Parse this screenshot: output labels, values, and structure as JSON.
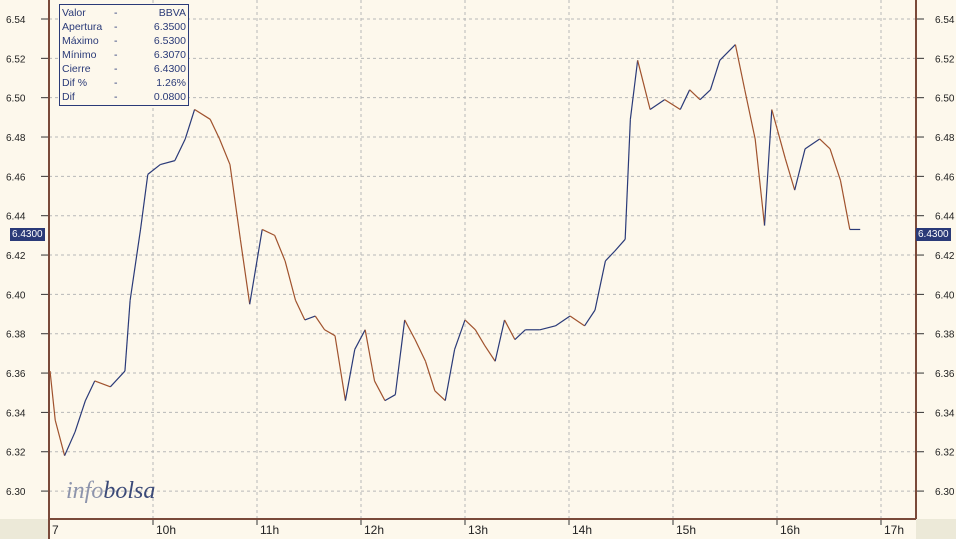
{
  "info_box": {
    "rows": [
      {
        "label": "Valor",
        "value": "BBVA"
      },
      {
        "label": "Apertura",
        "value": "6.3500"
      },
      {
        "label": "Máximo",
        "value": "6.5300"
      },
      {
        "label": "Mínimo",
        "value": "6.3070"
      },
      {
        "label": "Cierre",
        "value": "6.4300"
      },
      {
        "label": "Dif %",
        "value": "1.26%"
      },
      {
        "label": "Dif",
        "value": "0.0800"
      }
    ],
    "sep": "-"
  },
  "logo": {
    "part1": "info",
    "part2": "bolsa"
  },
  "last_value_tag": "6.4300",
  "colors": {
    "up": "#2a3a78",
    "down": "#a0522d",
    "axis": "#7a4a3a",
    "grid": "#b8b8b8"
  },
  "chart_data": {
    "type": "line",
    "yticks": [
      "6.30",
      "6.32",
      "6.34",
      "6.36",
      "6.38",
      "6.40",
      "6.42",
      "6.44",
      "6.46",
      "6.48",
      "6.50",
      "6.52",
      "6.54"
    ],
    "ylim": [
      6.29,
      6.55
    ],
    "xticks": [
      {
        "h": 9,
        "label": "7"
      },
      {
        "h": 10,
        "label": "10h"
      },
      {
        "h": 11,
        "label": "11h"
      },
      {
        "h": 12,
        "label": "12h"
      },
      {
        "h": 13,
        "label": "13h"
      },
      {
        "h": 14,
        "label": "14h"
      },
      {
        "h": 15,
        "label": "15h"
      },
      {
        "h": 16,
        "label": "16h"
      },
      {
        "h": 17,
        "label": "17h"
      }
    ],
    "xlim": [
      9,
      17.35
    ],
    "grid": true,
    "points": [
      [
        9.01,
        6.361
      ],
      [
        9.06,
        6.336
      ],
      [
        9.15,
        6.318
      ],
      [
        9.25,
        6.33
      ],
      [
        9.35,
        6.346
      ],
      [
        9.44,
        6.356
      ],
      [
        9.59,
        6.353
      ],
      [
        9.73,
        6.361
      ],
      [
        9.78,
        6.397
      ],
      [
        9.88,
        6.433
      ],
      [
        9.95,
        6.461
      ],
      [
        10.07,
        6.466
      ],
      [
        10.21,
        6.468
      ],
      [
        10.31,
        6.479
      ],
      [
        10.4,
        6.494
      ],
      [
        10.55,
        6.489
      ],
      [
        10.64,
        6.479
      ],
      [
        10.74,
        6.466
      ],
      [
        10.84,
        6.428
      ],
      [
        10.93,
        6.395
      ],
      [
        11.05,
        6.433
      ],
      [
        11.17,
        6.43
      ],
      [
        11.27,
        6.417
      ],
      [
        11.37,
        6.397
      ],
      [
        11.46,
        6.387
      ],
      [
        11.56,
        6.389
      ],
      [
        11.65,
        6.382
      ],
      [
        11.75,
        6.379
      ],
      [
        11.85,
        6.346
      ],
      [
        11.94,
        6.372
      ],
      [
        12.04,
        6.382
      ],
      [
        12.13,
        6.356
      ],
      [
        12.23,
        6.346
      ],
      [
        12.33,
        6.349
      ],
      [
        12.42,
        6.387
      ],
      [
        12.52,
        6.377
      ],
      [
        12.62,
        6.366
      ],
      [
        12.71,
        6.351
      ],
      [
        12.81,
        6.346
      ],
      [
        12.9,
        6.372
      ],
      [
        13.0,
        6.387
      ],
      [
        13.1,
        6.382
      ],
      [
        13.19,
        6.374
      ],
      [
        13.29,
        6.366
      ],
      [
        13.38,
        6.387
      ],
      [
        13.48,
        6.377
      ],
      [
        13.58,
        6.382
      ],
      [
        13.72,
        6.382
      ],
      [
        13.87,
        6.384
      ],
      [
        14.01,
        6.389
      ],
      [
        14.15,
        6.384
      ],
      [
        14.25,
        6.392
      ],
      [
        14.35,
        6.417
      ],
      [
        14.44,
        6.422
      ],
      [
        14.54,
        6.428
      ],
      [
        14.59,
        6.489
      ],
      [
        14.66,
        6.519
      ],
      [
        14.78,
        6.494
      ],
      [
        14.92,
        6.499
      ],
      [
        15.07,
        6.494
      ],
      [
        15.16,
        6.504
      ],
      [
        15.26,
        6.499
      ],
      [
        15.36,
        6.504
      ],
      [
        15.45,
        6.519
      ],
      [
        15.6,
        6.527
      ],
      [
        15.69,
        6.504
      ],
      [
        15.79,
        6.479
      ],
      [
        15.88,
        6.435
      ],
      [
        15.95,
        6.494
      ],
      [
        16.08,
        6.469
      ],
      [
        16.17,
        6.453
      ],
      [
        16.27,
        6.474
      ],
      [
        16.41,
        6.479
      ],
      [
        16.51,
        6.474
      ],
      [
        16.61,
        6.458
      ],
      [
        16.7,
        6.433
      ],
      [
        16.8,
        6.433
      ]
    ]
  }
}
